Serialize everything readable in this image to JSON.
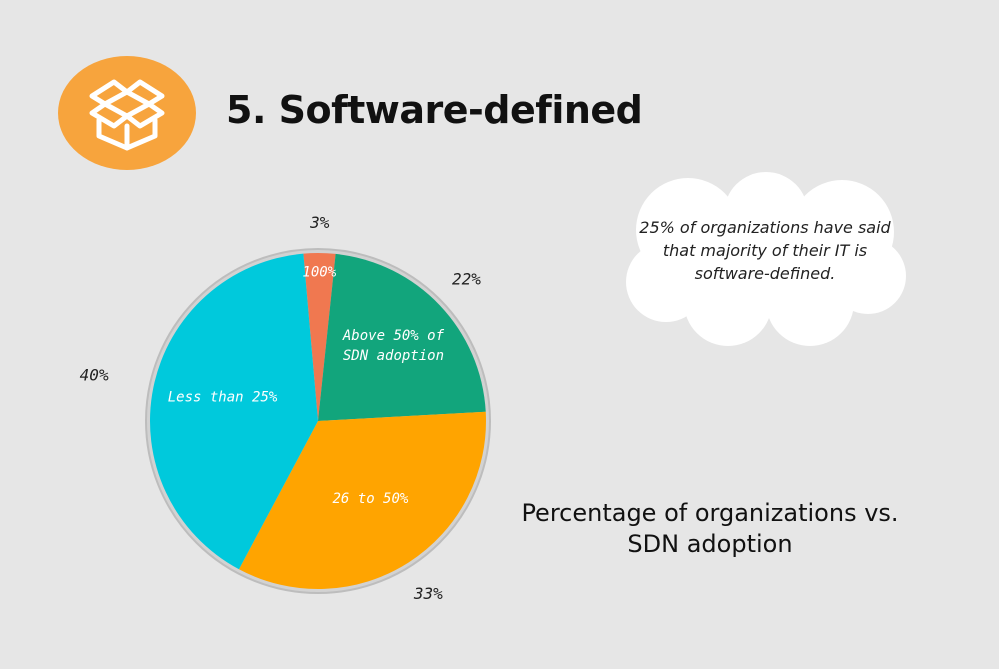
{
  "header": {
    "title": "5. Software-defined",
    "logo_icon": "box-stack-icon",
    "logo_color": "#f7a43d"
  },
  "callout": {
    "text": "25% of organizations have said that majority of their IT is software-defined."
  },
  "chart_data": {
    "type": "pie",
    "title": "Percentage of organizations vs. SDN adoption",
    "slices": [
      {
        "label": "100%",
        "value": 3,
        "value_label": "3%",
        "color": "#f07850"
      },
      {
        "label": "Above 50% of SDN adoption",
        "value": 22,
        "value_label": "22%",
        "color": "#12a57c"
      },
      {
        "label": "26 to 50%",
        "value": 33,
        "value_label": "33%",
        "color": "#ffa400"
      },
      {
        "label": "Less than 25%",
        "value": 40,
        "value_label": "40%",
        "color": "#00c9dc"
      }
    ]
  }
}
